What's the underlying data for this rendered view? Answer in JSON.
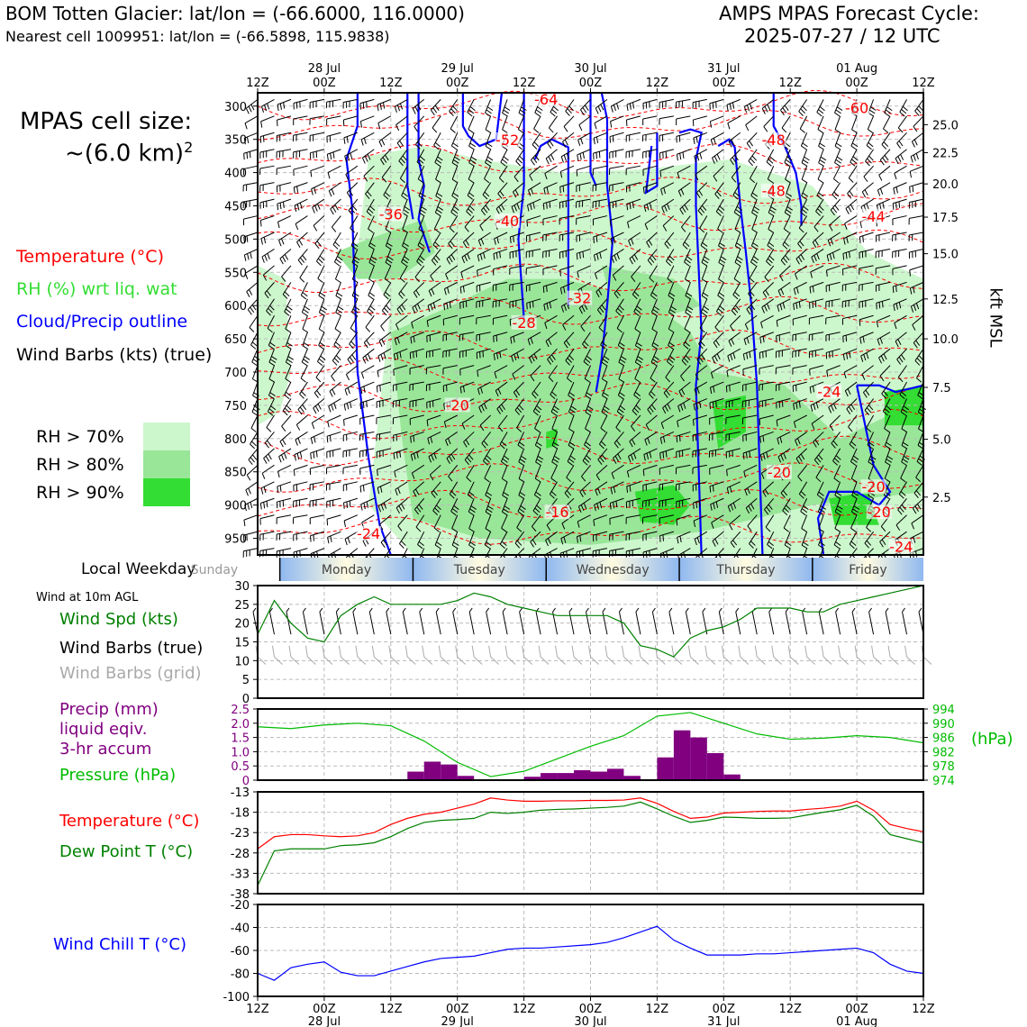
{
  "header": {
    "left_title": "BOM Totten Glacier: lat/lon = (-66.6000, 116.0000)",
    "left_subtitle": "Nearest cell 1009951: lat/lon = (-66.5898, 115.9838)",
    "right_title": "AMPS MPAS Forecast Cycle:",
    "right_subtitle": "2025-07-27 / 12 UTC"
  },
  "side": {
    "cell_size_label": "MPAS cell size:",
    "cell_size_value": "~(6.0 km)",
    "cell_size_exp": "2",
    "legend_temp": "Temperature (°C)",
    "legend_rh": "RH (%) wrt liq. wat",
    "legend_cloud": "Cloud/Precip outline",
    "legend_wind": "Wind Barbs (kts) (true)",
    "rh70": "RH > 70%",
    "rh80": "RH > 80%",
    "rh90": "RH > 90%",
    "local_weekday": "Local Weekday",
    "wind_10m": "Wind at 10m AGL",
    "wind_spd": "Wind Spd (kts)",
    "wind_barbs_true": "Wind Barbs (true)",
    "wind_barbs_grid": "Wind Barbs (grid)",
    "precip1": "Precip (mm)",
    "precip2": "liquid eqiv.",
    "precip3": "3-hr accum",
    "pressure": "Pressure (hPa)",
    "hpa": "(hPa)",
    "temperature": "Temperature (°C)",
    "dewpoint": "Dew Point T (°C)",
    "windchill": "Wind Chill T (°C)",
    "kft_msl": "kft MSL"
  },
  "colors": {
    "temp": "#ff0000",
    "rh": "#33dd33",
    "cloud": "#0000ff",
    "precip": "#800080",
    "pressure": "#00bb00",
    "windspd": "#008000",
    "rh70": "#ccf7cc",
    "rh80": "#99e699",
    "rh90": "#33dd33",
    "gray_barb": "#aaaaaa"
  },
  "chart_data": [
    {
      "type": "area",
      "panel": "cross-section",
      "x_hours": [
        0,
        120
      ],
      "ylabel_left_ticks": [
        "300",
        "350",
        "400",
        "450",
        "500",
        "550",
        "600",
        "650",
        "700",
        "750",
        "800",
        "850",
        "900",
        "950"
      ],
      "pressure_range": [
        280,
        975
      ],
      "kft_ticks": [
        "25.0",
        "22.5",
        "20.0",
        "17.5",
        "15.0",
        "12.5",
        "10.0",
        "7.5",
        "5.0",
        "2.5"
      ],
      "kft_tick_pressures": [
        328,
        370,
        417,
        467,
        522,
        590,
        650,
        723,
        801,
        888
      ],
      "top_ticks": [
        "12Z",
        "00Z",
        "12Z",
        "00Z",
        "12Z",
        "00Z",
        "12Z",
        "00Z",
        "12Z",
        "00Z",
        "12Z"
      ],
      "top_dates": [
        "28 Jul",
        "29 Jul",
        "30 Jul",
        "31 Jul",
        "01 Aug"
      ],
      "temp_labels": [
        {
          "text": "-64",
          "h": 52,
          "p": 292
        },
        {
          "text": "-60",
          "h": 108,
          "p": 305
        },
        {
          "text": "-52",
          "h": 45,
          "p": 353
        },
        {
          "text": "-48",
          "h": 93,
          "p": 353
        },
        {
          "text": "-48",
          "h": 93,
          "p": 430
        },
        {
          "text": "-44",
          "h": 111,
          "p": 468
        },
        {
          "text": "-40",
          "h": 45,
          "p": 475
        },
        {
          "text": "-36",
          "h": 24,
          "p": 465
        },
        {
          "text": "-32",
          "h": 58,
          "p": 591
        },
        {
          "text": "-28",
          "h": 48,
          "p": 628
        },
        {
          "text": "-24",
          "h": 103,
          "p": 732
        },
        {
          "text": "-20",
          "h": 36,
          "p": 752
        },
        {
          "text": "-20",
          "h": 94,
          "p": 853
        },
        {
          "text": "-20",
          "h": 111,
          "p": 875
        },
        {
          "text": "-20",
          "h": 112,
          "p": 913
        },
        {
          "text": "-16",
          "h": 54,
          "p": 913
        },
        {
          "text": "-24",
          "h": 20,
          "p": 945
        },
        {
          "text": "-24",
          "h": 116,
          "p": 965
        }
      ]
    },
    {
      "type": "line",
      "panel": "wind-10m",
      "ylim": [
        0,
        30
      ],
      "yticks": [
        "0",
        "5",
        "10",
        "15",
        "20",
        "25",
        "30"
      ],
      "x_hours": [
        0,
        3,
        6,
        9,
        12,
        15,
        18,
        21,
        24,
        27,
        30,
        33,
        36,
        39,
        42,
        45,
        48,
        51,
        54,
        57,
        60,
        63,
        66,
        69,
        72,
        75,
        78,
        81,
        84,
        87,
        90,
        93,
        96,
        99,
        102,
        105,
        108,
        111,
        114,
        117,
        120
      ],
      "series": [
        {
          "values": [
            17,
            26,
            20,
            16,
            15,
            22,
            25,
            27,
            25,
            25,
            25,
            25,
            26,
            28,
            27,
            25,
            24,
            23,
            22,
            22,
            22,
            22,
            20,
            14,
            13,
            11,
            16,
            18,
            19,
            21,
            24,
            24,
            24,
            23,
            23,
            25,
            26,
            27,
            28,
            29,
            30
          ]
        }
      ]
    },
    {
      "type": "bar",
      "panel": "precip-pressure",
      "precip_ylim": [
        0,
        2.5
      ],
      "precip_yticks": [
        "0",
        "0.5",
        "1.0",
        "1.5",
        "2.0",
        "2.5"
      ],
      "pressure_ylim": [
        974,
        994
      ],
      "pressure_yticks": [
        "974",
        "978",
        "982",
        "986",
        "990",
        "994"
      ],
      "precip_bars": [
        {
          "h": 30,
          "v": 0.3
        },
        {
          "h": 33,
          "v": 0.65
        },
        {
          "h": 36,
          "v": 0.55
        },
        {
          "h": 39,
          "v": 0.15
        },
        {
          "h": 51,
          "v": 0.12
        },
        {
          "h": 54,
          "v": 0.25
        },
        {
          "h": 57,
          "v": 0.25
        },
        {
          "h": 60,
          "v": 0.35
        },
        {
          "h": 63,
          "v": 0.3
        },
        {
          "h": 66,
          "v": 0.4
        },
        {
          "h": 69,
          "v": 0.15
        },
        {
          "h": 75,
          "v": 0.8
        },
        {
          "h": 78,
          "v": 1.75
        },
        {
          "h": 81,
          "v": 1.5
        },
        {
          "h": 84,
          "v": 0.95
        },
        {
          "h": 87,
          "v": 0.2
        }
      ],
      "pressure_hours": [
        0,
        6,
        12,
        18,
        24,
        30,
        36,
        42,
        48,
        54,
        60,
        66,
        72,
        78,
        84,
        90,
        96,
        102,
        108,
        114,
        120
      ],
      "pressure_values": [
        989,
        988.5,
        989.5,
        990,
        989.3,
        985,
        979,
        975,
        976.5,
        980,
        983.5,
        986.5,
        992,
        993,
        990,
        987,
        985.5,
        985.8,
        986.5,
        986,
        984.5
      ]
    },
    {
      "type": "line",
      "panel": "temperature",
      "ylim": [
        -38,
        -13
      ],
      "yticks": [
        "-13",
        "-18",
        "-23",
        "-28",
        "-33",
        "-38"
      ],
      "x_hours": [
        0,
        3,
        6,
        9,
        12,
        15,
        18,
        21,
        24,
        27,
        30,
        33,
        36,
        39,
        42,
        45,
        48,
        51,
        54,
        57,
        60,
        63,
        66,
        69,
        72,
        75,
        78,
        81,
        84,
        87,
        90,
        93,
        96,
        99,
        102,
        105,
        108,
        111,
        114,
        117,
        120
      ],
      "series": [
        {
          "name": "Temperature",
          "values": [
            -27,
            -24,
            -23.5,
            -23.5,
            -23.8,
            -24,
            -23.8,
            -23,
            -21,
            -19.5,
            -18.5,
            -18,
            -17,
            -16,
            -14.5,
            -15,
            -15.3,
            -15.3,
            -15.2,
            -15.2,
            -15.1,
            -15.1,
            -15,
            -14.5,
            -15.8,
            -17.8,
            -19.5,
            -19.2,
            -18.2,
            -18,
            -17.8,
            -17.7,
            -17.7,
            -17.3,
            -17,
            -16.5,
            -15.3,
            -17.5,
            -21,
            -22,
            -22.8
          ],
          "color": "#ff0000"
        },
        {
          "name": "Dew Point T",
          "values": [
            -36,
            -27.5,
            -27,
            -27,
            -27,
            -26.2,
            -26,
            -25.5,
            -24,
            -22,
            -20.5,
            -20,
            -19.8,
            -19.5,
            -18,
            -18.3,
            -18,
            -17.5,
            -17.3,
            -17.2,
            -17,
            -16.8,
            -16.5,
            -15.5,
            -17.2,
            -19,
            -20.5,
            -20,
            -19.2,
            -19.3,
            -19.5,
            -19.5,
            -19.4,
            -18.7,
            -18,
            -17.4,
            -16.3,
            -19,
            -23.5,
            -24.5,
            -25.5
          ],
          "color": "#008000"
        }
      ]
    },
    {
      "type": "line",
      "panel": "wind-chill",
      "ylim": [
        -100,
        -20
      ],
      "yticks": [
        "-20",
        "-40",
        "-60",
        "-80",
        "-100"
      ],
      "x_hours": [
        0,
        3,
        6,
        9,
        12,
        15,
        18,
        21,
        24,
        27,
        30,
        33,
        36,
        39,
        42,
        45,
        48,
        51,
        54,
        57,
        60,
        63,
        66,
        69,
        72,
        75,
        78,
        81,
        84,
        87,
        90,
        93,
        96,
        99,
        102,
        105,
        108,
        111,
        114,
        117,
        120
      ],
      "series": [
        {
          "name": "Wind Chill T",
          "values": [
            -80,
            -86,
            -75,
            -72,
            -70,
            -79,
            -82,
            -82,
            -78,
            -74,
            -70,
            -67,
            -66,
            -65,
            -62,
            -59,
            -58,
            -58,
            -57,
            -56,
            -55,
            -53,
            -49,
            -44,
            -39,
            -51,
            -58,
            -64,
            -64,
            -64,
            -63,
            -63,
            -62,
            -61,
            -60,
            -59,
            -58,
            -62,
            -72,
            -78,
            -80
          ],
          "color": "#0000ff"
        }
      ]
    }
  ],
  "weekdays": [
    "Sunday",
    "Monday",
    "Tuesday",
    "Wednesday",
    "Thursday",
    "Friday"
  ],
  "bottom_ticks": [
    "12Z",
    "00Z",
    "12Z",
    "00Z",
    "12Z",
    "00Z",
    "12Z",
    "00Z",
    "12Z",
    "00Z",
    "12Z"
  ],
  "bottom_dates": [
    "28 Jul",
    "29 Jul",
    "30 Jul",
    "31 Jul",
    "01 Aug"
  ]
}
